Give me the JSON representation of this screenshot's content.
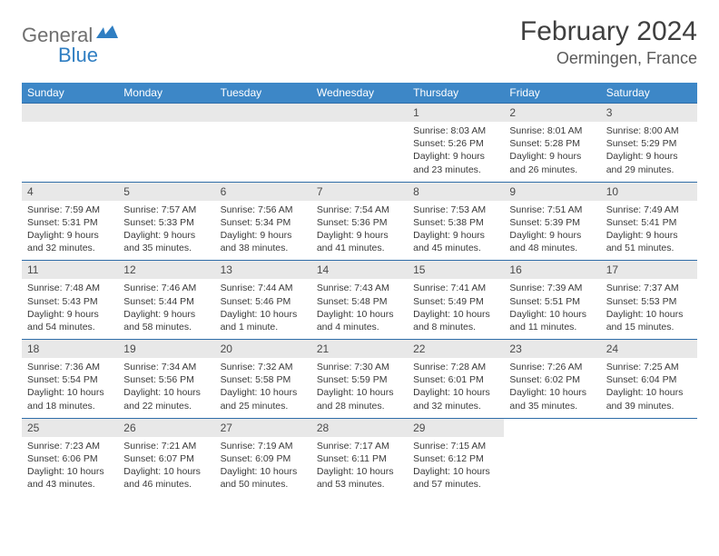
{
  "logo": {
    "general": "General",
    "blue": "Blue"
  },
  "title": "February 2024",
  "location": "Oermingen, France",
  "colors": {
    "header_bg": "#3d87c7",
    "header_text": "#ffffff",
    "daynum_bg": "#e8e8e8",
    "border": "#2f6da8",
    "text": "#3a3a3a"
  },
  "day_names": [
    "Sunday",
    "Monday",
    "Tuesday",
    "Wednesday",
    "Thursday",
    "Friday",
    "Saturday"
  ],
  "weeks": [
    [
      null,
      null,
      null,
      null,
      {
        "n": "1",
        "sr": "8:03 AM",
        "ss": "5:26 PM",
        "dl": "9 hours and 23 minutes."
      },
      {
        "n": "2",
        "sr": "8:01 AM",
        "ss": "5:28 PM",
        "dl": "9 hours and 26 minutes."
      },
      {
        "n": "3",
        "sr": "8:00 AM",
        "ss": "5:29 PM",
        "dl": "9 hours and 29 minutes."
      }
    ],
    [
      {
        "n": "4",
        "sr": "7:59 AM",
        "ss": "5:31 PM",
        "dl": "9 hours and 32 minutes."
      },
      {
        "n": "5",
        "sr": "7:57 AM",
        "ss": "5:33 PM",
        "dl": "9 hours and 35 minutes."
      },
      {
        "n": "6",
        "sr": "7:56 AM",
        "ss": "5:34 PM",
        "dl": "9 hours and 38 minutes."
      },
      {
        "n": "7",
        "sr": "7:54 AM",
        "ss": "5:36 PM",
        "dl": "9 hours and 41 minutes."
      },
      {
        "n": "8",
        "sr": "7:53 AM",
        "ss": "5:38 PM",
        "dl": "9 hours and 45 minutes."
      },
      {
        "n": "9",
        "sr": "7:51 AM",
        "ss": "5:39 PM",
        "dl": "9 hours and 48 minutes."
      },
      {
        "n": "10",
        "sr": "7:49 AM",
        "ss": "5:41 PM",
        "dl": "9 hours and 51 minutes."
      }
    ],
    [
      {
        "n": "11",
        "sr": "7:48 AM",
        "ss": "5:43 PM",
        "dl": "9 hours and 54 minutes."
      },
      {
        "n": "12",
        "sr": "7:46 AM",
        "ss": "5:44 PM",
        "dl": "9 hours and 58 minutes."
      },
      {
        "n": "13",
        "sr": "7:44 AM",
        "ss": "5:46 PM",
        "dl": "10 hours and 1 minute."
      },
      {
        "n": "14",
        "sr": "7:43 AM",
        "ss": "5:48 PM",
        "dl": "10 hours and 4 minutes."
      },
      {
        "n": "15",
        "sr": "7:41 AM",
        "ss": "5:49 PM",
        "dl": "10 hours and 8 minutes."
      },
      {
        "n": "16",
        "sr": "7:39 AM",
        "ss": "5:51 PM",
        "dl": "10 hours and 11 minutes."
      },
      {
        "n": "17",
        "sr": "7:37 AM",
        "ss": "5:53 PM",
        "dl": "10 hours and 15 minutes."
      }
    ],
    [
      {
        "n": "18",
        "sr": "7:36 AM",
        "ss": "5:54 PM",
        "dl": "10 hours and 18 minutes."
      },
      {
        "n": "19",
        "sr": "7:34 AM",
        "ss": "5:56 PM",
        "dl": "10 hours and 22 minutes."
      },
      {
        "n": "20",
        "sr": "7:32 AM",
        "ss": "5:58 PM",
        "dl": "10 hours and 25 minutes."
      },
      {
        "n": "21",
        "sr": "7:30 AM",
        "ss": "5:59 PM",
        "dl": "10 hours and 28 minutes."
      },
      {
        "n": "22",
        "sr": "7:28 AM",
        "ss": "6:01 PM",
        "dl": "10 hours and 32 minutes."
      },
      {
        "n": "23",
        "sr": "7:26 AM",
        "ss": "6:02 PM",
        "dl": "10 hours and 35 minutes."
      },
      {
        "n": "24",
        "sr": "7:25 AM",
        "ss": "6:04 PM",
        "dl": "10 hours and 39 minutes."
      }
    ],
    [
      {
        "n": "25",
        "sr": "7:23 AM",
        "ss": "6:06 PM",
        "dl": "10 hours and 43 minutes."
      },
      {
        "n": "26",
        "sr": "7:21 AM",
        "ss": "6:07 PM",
        "dl": "10 hours and 46 minutes."
      },
      {
        "n": "27",
        "sr": "7:19 AM",
        "ss": "6:09 PM",
        "dl": "10 hours and 50 minutes."
      },
      {
        "n": "28",
        "sr": "7:17 AM",
        "ss": "6:11 PM",
        "dl": "10 hours and 53 minutes."
      },
      {
        "n": "29",
        "sr": "7:15 AM",
        "ss": "6:12 PM",
        "dl": "10 hours and 57 minutes."
      },
      null,
      null
    ]
  ],
  "labels": {
    "sunrise": "Sunrise:",
    "sunset": "Sunset:",
    "daylight": "Daylight:"
  }
}
